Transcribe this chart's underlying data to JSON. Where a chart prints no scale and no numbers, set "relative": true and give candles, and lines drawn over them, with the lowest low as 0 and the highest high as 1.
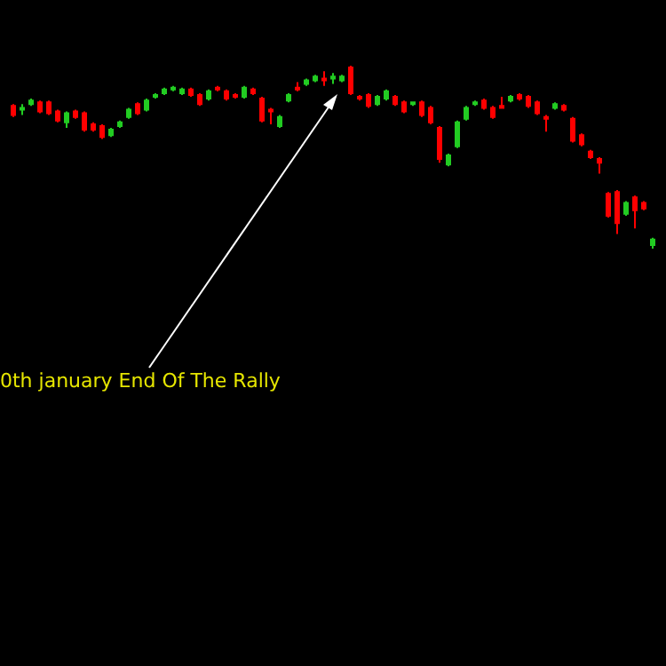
{
  "chart_data": {
    "type": "candlestick",
    "relative": true,
    "categories": [
      null,
      null,
      null,
      null,
      null,
      null,
      null,
      null,
      null,
      null,
      null,
      null,
      null,
      null,
      null,
      null,
      null,
      null,
      null,
      null,
      null,
      null,
      null,
      null,
      null,
      null,
      null,
      null,
      null,
      null,
      null,
      null,
      null,
      null,
      null,
      null,
      null,
      null,
      null,
      null,
      null,
      null,
      null,
      null,
      null,
      null,
      null,
      null,
      null,
      null,
      null,
      null,
      null,
      null,
      null,
      null,
      null,
      null,
      null,
      null,
      null,
      null,
      null,
      null,
      null,
      null,
      null,
      null,
      null,
      null,
      null,
      null,
      null
    ],
    "ohlc": [
      [
        0.78,
        0.79,
        0.72,
        0.73
      ],
      [
        0.76,
        0.79,
        0.73,
        0.77
      ],
      [
        0.79,
        0.82,
        0.78,
        0.81
      ],
      [
        0.8,
        0.81,
        0.74,
        0.75
      ],
      [
        0.8,
        0.81,
        0.73,
        0.74
      ],
      [
        0.75,
        0.76,
        0.69,
        0.7
      ],
      [
        0.69,
        0.75,
        0.66,
        0.74
      ],
      [
        0.75,
        0.76,
        0.71,
        0.72
      ],
      [
        0.74,
        0.75,
        0.64,
        0.65
      ],
      [
        0.68,
        0.69,
        0.64,
        0.65
      ],
      [
        0.67,
        0.68,
        0.6,
        0.61
      ],
      [
        0.62,
        0.66,
        0.61,
        0.65
      ],
      [
        0.67,
        0.7,
        0.66,
        0.69
      ],
      [
        0.72,
        0.77,
        0.71,
        0.76
      ],
      [
        0.79,
        0.8,
        0.73,
        0.74
      ],
      [
        0.76,
        0.82,
        0.75,
        0.81
      ],
      [
        0.83,
        0.85,
        0.82,
        0.84
      ],
      [
        0.85,
        0.88,
        0.84,
        0.87
      ],
      [
        0.87,
        0.89,
        0.86,
        0.88
      ],
      [
        0.85,
        0.88,
        0.84,
        0.87
      ],
      [
        0.87,
        0.88,
        0.83,
        0.84
      ],
      [
        0.84,
        0.85,
        0.78,
        0.79
      ],
      [
        0.82,
        0.87,
        0.81,
        0.86
      ],
      [
        0.88,
        0.89,
        0.86,
        0.87
      ],
      [
        0.86,
        0.87,
        0.81,
        0.82
      ],
      [
        0.84,
        0.85,
        0.82,
        0.83
      ],
      [
        0.83,
        0.89,
        0.82,
        0.88
      ],
      [
        0.87,
        0.88,
        0.84,
        0.85
      ],
      [
        0.82,
        0.83,
        0.69,
        0.7
      ],
      [
        0.76,
        0.77,
        0.68,
        0.75
      ],
      [
        0.67,
        0.73,
        0.66,
        0.72
      ],
      [
        0.81,
        0.85,
        0.8,
        0.84
      ],
      [
        0.88,
        0.91,
        0.86,
        0.87
      ],
      [
        0.9,
        0.93,
        0.89,
        0.92
      ],
      [
        0.92,
        0.95,
        0.91,
        0.94
      ],
      [
        0.93,
        0.97,
        0.89,
        0.92
      ],
      [
        0.93,
        0.96,
        0.9,
        0.94
      ],
      [
        0.92,
        0.95,
        0.91,
        0.94
      ],
      [
        0.99,
        1.0,
        0.84,
        0.85
      ],
      [
        0.83,
        0.84,
        0.81,
        0.82
      ],
      [
        0.84,
        0.85,
        0.77,
        0.78
      ],
      [
        0.79,
        0.84,
        0.78,
        0.83
      ],
      [
        0.82,
        0.87,
        0.81,
        0.86
      ],
      [
        0.83,
        0.84,
        0.78,
        0.79
      ],
      [
        0.8,
        0.81,
        0.74,
        0.75
      ],
      [
        0.79,
        0.8,
        0.78,
        0.8
      ],
      [
        0.8,
        0.81,
        0.72,
        0.73
      ],
      [
        0.77,
        0.78,
        0.68,
        0.69
      ],
      [
        0.66,
        0.67,
        0.47,
        0.49
      ],
      [
        0.46,
        0.52,
        0.45,
        0.51
      ],
      [
        0.56,
        0.7,
        0.55,
        0.69
      ],
      [
        0.71,
        0.78,
        0.7,
        0.77
      ],
      [
        0.79,
        0.81,
        0.78,
        0.8
      ],
      [
        0.81,
        0.82,
        0.76,
        0.77
      ],
      [
        0.77,
        0.78,
        0.71,
        0.72
      ],
      [
        0.78,
        0.83,
        0.77,
        0.77
      ],
      [
        0.81,
        0.84,
        0.8,
        0.83
      ],
      [
        0.84,
        0.85,
        0.81,
        0.82
      ],
      [
        0.83,
        0.84,
        0.77,
        0.78
      ],
      [
        0.8,
        0.81,
        0.73,
        0.74
      ],
      [
        0.72,
        0.73,
        0.64,
        0.71
      ],
      [
        0.77,
        0.8,
        0.76,
        0.79
      ],
      [
        0.78,
        0.79,
        0.75,
        0.76
      ],
      [
        0.71,
        0.72,
        0.58,
        0.59
      ],
      [
        0.62,
        0.63,
        0.56,
        0.57
      ],
      [
        0.53,
        0.54,
        0.49,
        0.5
      ],
      [
        0.49,
        0.5,
        0.41,
        0.47
      ],
      [
        0.3,
        0.31,
        0.17,
        0.18
      ],
      [
        0.31,
        0.32,
        0.08,
        0.14
      ],
      [
        0.19,
        0.26,
        0.18,
        0.25
      ],
      [
        0.28,
        0.29,
        0.11,
        0.21
      ],
      [
        0.25,
        0.26,
        0.21,
        0.22
      ],
      [
        0.02,
        0.06,
        0,
        0.05
      ]
    ],
    "annotations": [
      "0th january End Of The Rally"
    ]
  }
}
